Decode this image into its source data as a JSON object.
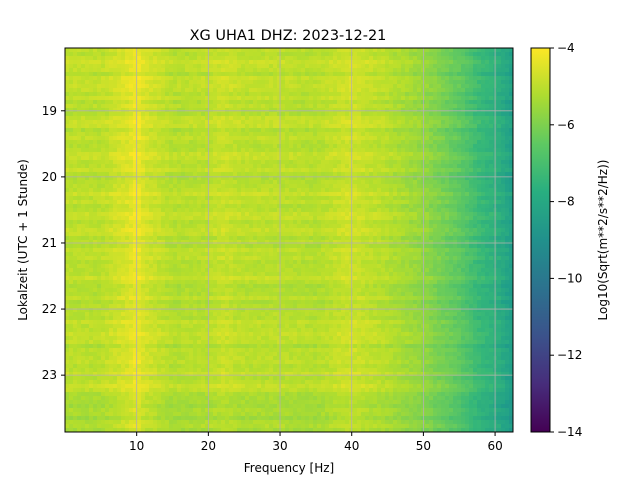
{
  "chart_data": {
    "type": "heatmap",
    "title": "XG UHA1  DHZ: 2023-12-21",
    "xlabel": "Frequency [Hz]",
    "ylabel": "Lokalzeit (UTC + 1 Stunde)",
    "xlim": [
      0,
      62.5
    ],
    "ylim": [
      18.05,
      23.86
    ],
    "y_inverted": true,
    "x_ticks": [
      10,
      20,
      30,
      40,
      50,
      60
    ],
    "y_ticks": [
      19,
      20,
      21,
      22,
      23
    ],
    "grid": true,
    "colormap": "viridis",
    "colorbar": {
      "label": "Log10(Sqrt(m**2/s**2/Hz))",
      "range": [
        -14,
        -4
      ],
      "ticks": [
        -4,
        -6,
        -8,
        -10,
        -12,
        -14
      ],
      "tick_labels": [
        "−4",
        "−6",
        "−8",
        "−10",
        "−12",
        "−14"
      ]
    },
    "frequency_profile": {
      "frequency_hz": [
        0,
        5,
        9,
        10,
        11,
        15,
        20,
        22,
        25,
        30,
        35,
        40,
        41,
        45,
        50,
        55,
        58,
        60,
        62.5
      ],
      "log10_amplitude": [
        -5.0,
        -5.0,
        -4.5,
        -4.2,
        -4.6,
        -5.1,
        -5.0,
        -4.8,
        -5.0,
        -5.0,
        -5.1,
        -4.7,
        -4.8,
        -5.1,
        -5.6,
        -6.5,
        -7.3,
        -7.6,
        -8.4
      ]
    }
  }
}
